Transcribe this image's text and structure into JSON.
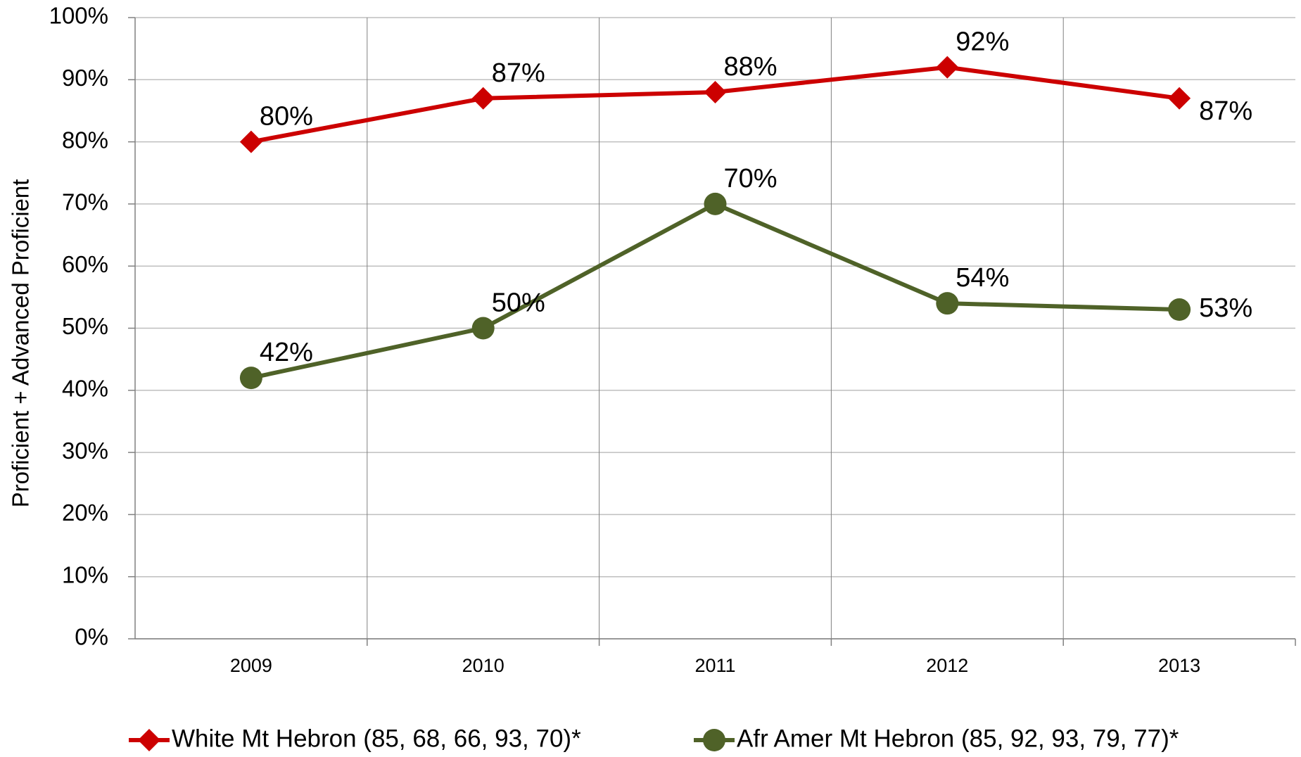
{
  "chart_data": {
    "type": "line",
    "y_label": "Proficient + Advanced Proficient",
    "categories": [
      "2009",
      "2010",
      "2011",
      "2012",
      "2013"
    ],
    "series": [
      {
        "name": "White Mt Hebron (85, 68, 66, 93, 70)*",
        "color": "#cc0000",
        "marker": "diamond",
        "values": [
          80,
          87,
          88,
          92,
          87
        ],
        "value_labels": [
          "80%",
          "87%",
          "88%",
          "92%",
          "87%"
        ]
      },
      {
        "name": "Afr Amer Mt Hebron (85, 92, 93, 79, 77)*",
        "color": "#4f6228",
        "marker": "circle",
        "values": [
          42,
          50,
          70,
          54,
          53
        ],
        "value_labels": [
          "42%",
          "50%",
          "70%",
          "54%",
          "53%"
        ]
      }
    ],
    "ylim": [
      0,
      100
    ],
    "yticks": [
      {
        "value": 0,
        "label": "0%"
      },
      {
        "value": 10,
        "label": "10%"
      },
      {
        "value": 20,
        "label": "20%"
      },
      {
        "value": 30,
        "label": "30%"
      },
      {
        "value": 40,
        "label": "40%"
      },
      {
        "value": 50,
        "label": "50%"
      },
      {
        "value": 60,
        "label": "60%"
      },
      {
        "value": 70,
        "label": "70%"
      },
      {
        "value": 80,
        "label": "80%"
      },
      {
        "value": 90,
        "label": "90%"
      },
      {
        "value": 100,
        "label": "100%"
      }
    ],
    "grid": true,
    "legend": "bottom"
  }
}
